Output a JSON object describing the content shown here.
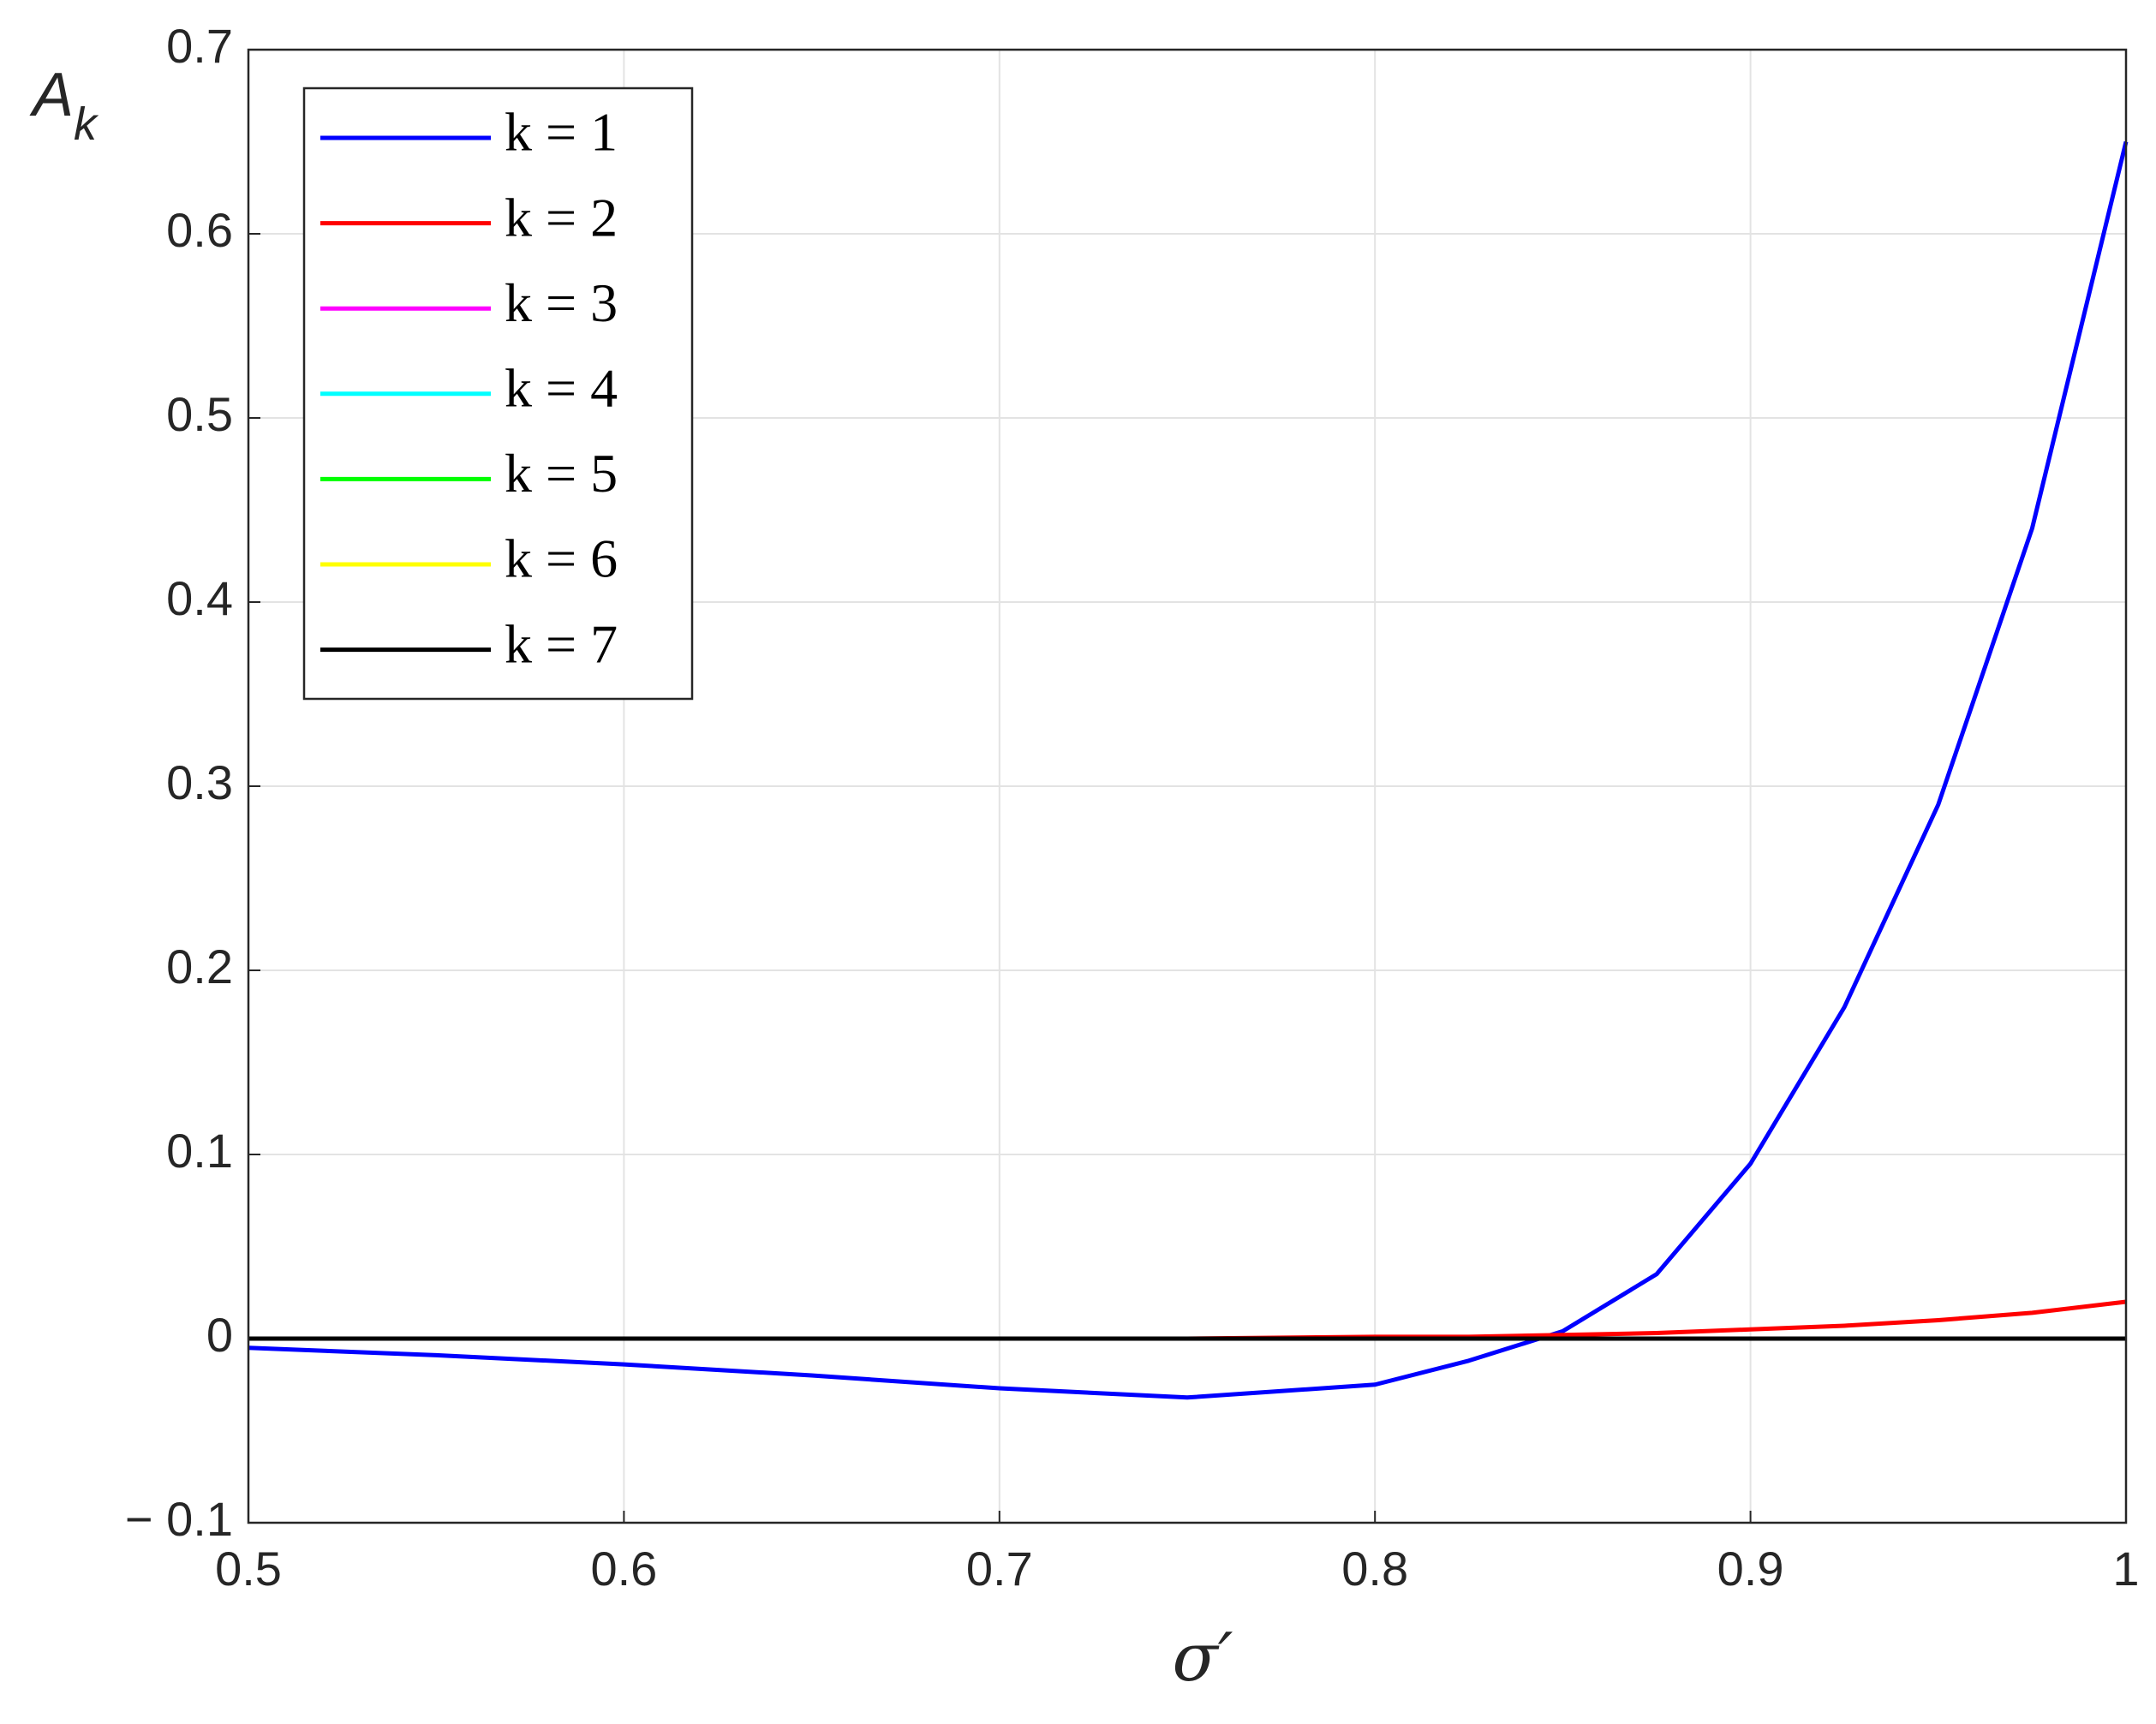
{
  "chart_data": {
    "type": "line",
    "xlabel": "σ′",
    "ylabel": "A",
    "ylabel_subscript": "k",
    "x": [
      0.5,
      0.55,
      0.6,
      0.65,
      0.7,
      0.75,
      0.8,
      0.825,
      0.85,
      0.875,
      0.9,
      0.925,
      0.95,
      0.975,
      1.0
    ],
    "series": [
      {
        "name": "k = 1",
        "color": "#0000ff",
        "values": [
          -0.005,
          -0.009,
          -0.014,
          -0.02,
          -0.027,
          -0.032,
          -0.025,
          -0.012,
          0.004,
          0.035,
          0.095,
          0.18,
          0.29,
          0.44,
          0.65
        ]
      },
      {
        "name": "k = 2",
        "color": "#ff0000",
        "values": [
          0,
          0,
          0,
          0,
          0,
          0,
          0.001,
          0.001,
          0.002,
          0.003,
          0.005,
          0.007,
          0.01,
          0.014,
          0.02
        ]
      },
      {
        "name": "k = 3",
        "color": "#ff00ff",
        "values": [
          0,
          0,
          0,
          0,
          0,
          0,
          0,
          0,
          0,
          0,
          0,
          0,
          0,
          0,
          0
        ]
      },
      {
        "name": "k = 4",
        "color": "#00ffff",
        "values": [
          0,
          0,
          0,
          0,
          0,
          0,
          0,
          0,
          0,
          0,
          0,
          0,
          0,
          0,
          0
        ]
      },
      {
        "name": "k = 5",
        "color": "#00ff00",
        "values": [
          0,
          0,
          0,
          0,
          0,
          0,
          0,
          0,
          0,
          0,
          0,
          0,
          0,
          0,
          0
        ]
      },
      {
        "name": "k = 6",
        "color": "#ffff00",
        "values": [
          0,
          0,
          0,
          0,
          0,
          0,
          0,
          0,
          0,
          0,
          0,
          0,
          0,
          0,
          0
        ]
      },
      {
        "name": "k = 7",
        "color": "#000000",
        "values": [
          0,
          0,
          0,
          0,
          0,
          0,
          0,
          0,
          0,
          0,
          0,
          0,
          0,
          0,
          0
        ]
      }
    ],
    "xlim": [
      0.5,
      1
    ],
    "xticks": [
      0.5,
      0.6,
      0.7,
      0.8,
      0.9,
      1
    ],
    "ylim": [
      -0.1,
      0.7
    ],
    "yticks": [
      {
        "value": -0.1,
        "label": "− 0.1"
      },
      0,
      0.1,
      0.2,
      0.3,
      0.4,
      0.5,
      0.6,
      0.7
    ],
    "grid": true,
    "legend": "upper left"
  }
}
